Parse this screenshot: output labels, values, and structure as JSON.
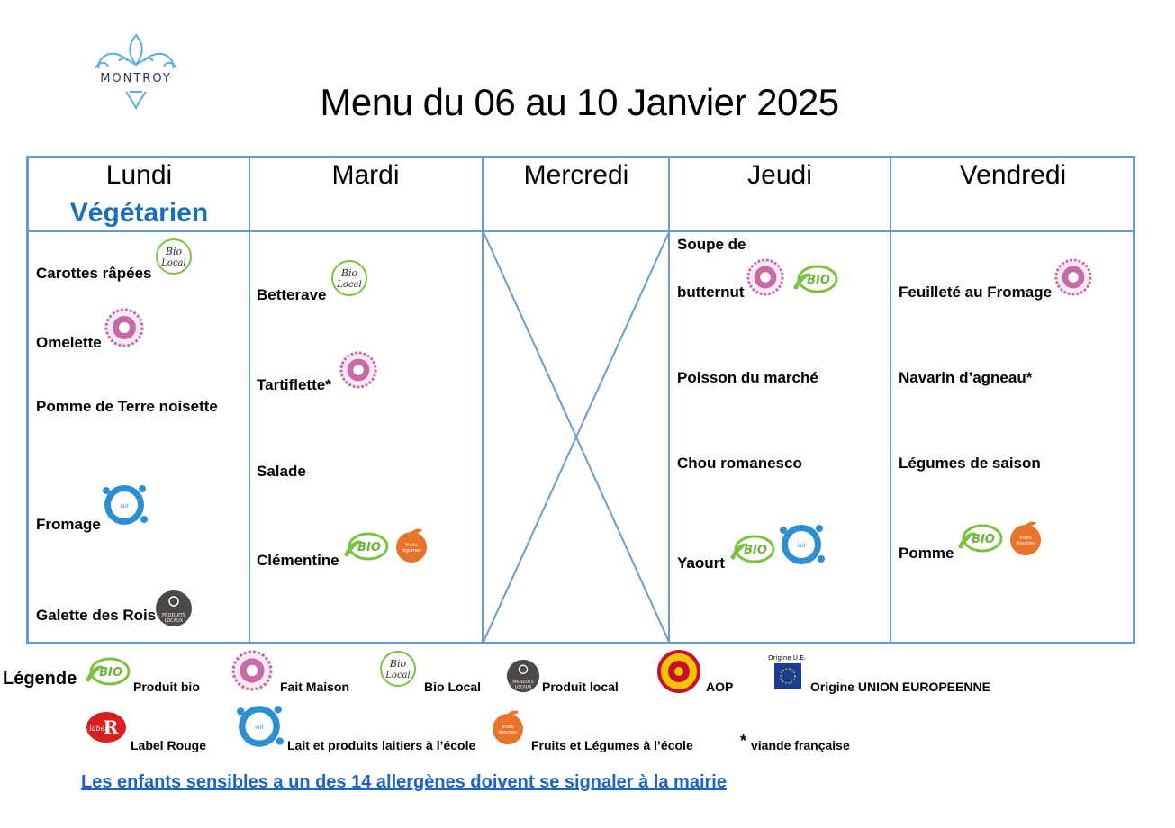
{
  "brand": {
    "name": "MONTROY"
  },
  "title": "Menu du 06 au 10 Janvier 2025",
  "days": [
    {
      "name": "Lundi",
      "theme": "Végétarien",
      "items": [
        {
          "label": "Carottes râpées",
          "badges": [
            "bio-local-icon"
          ]
        },
        {
          "label": "Omelette",
          "badges": [
            "fait-maison-icon"
          ]
        },
        {
          "label": "Pomme de Terre noisette",
          "badges": []
        },
        {
          "label": "Fromage",
          "badges": [
            "lait-ecole-icon"
          ]
        },
        {
          "label": "Galette des Rois",
          "badges": [
            "produit-local-icon"
          ]
        }
      ]
    },
    {
      "name": "Mardi",
      "items": [
        {
          "label": "Betterave",
          "badges": [
            "bio-local-icon"
          ]
        },
        {
          "label": "Tartiflette*",
          "badges": [
            "fait-maison-icon"
          ]
        },
        {
          "label": "Salade",
          "badges": []
        },
        {
          "label": "Clémentine",
          "badges": [
            "bio-icon",
            "fruits-legumes-ecole-icon"
          ]
        }
      ]
    },
    {
      "name": "Mercredi",
      "items": []
    },
    {
      "name": "Jeudi",
      "items": [
        {
          "label": "Soupe de",
          "badges": []
        },
        {
          "label": "butternut",
          "badges": [
            "fait-maison-icon",
            "bio-icon"
          ]
        },
        {
          "label": "Poisson du marché",
          "badges": []
        },
        {
          "label": "Chou romanesco",
          "badges": []
        },
        {
          "label": "Yaourt",
          "badges": [
            "bio-icon",
            "lait-ecole-icon"
          ]
        }
      ]
    },
    {
      "name": "Vendredi",
      "items": [
        {
          "label": "Feuilleté au Fromage",
          "badges": [
            "fait-maison-icon"
          ]
        },
        {
          "label": "Navarin d’agneau*",
          "badges": []
        },
        {
          "label": "Légumes de saison",
          "badges": []
        },
        {
          "label": "Pomme",
          "badges": [
            "bio-icon",
            "fruits-legumes-ecole-icon"
          ]
        }
      ]
    }
  ],
  "legend": {
    "title": "Légende",
    "items": [
      {
        "icon": "bio-icon",
        "label": "Produit bio"
      },
      {
        "icon": "fait-maison-icon",
        "label": "Fait Maison"
      },
      {
        "icon": "bio-local-icon",
        "label": "Bio Local"
      },
      {
        "icon": "produit-local-icon",
        "label": "Produit local"
      },
      {
        "icon": "aop-icon",
        "label": "AOP"
      },
      {
        "icon": "origine-ue-icon",
        "label": "Origine UNION EUROPEENNE"
      },
      {
        "icon": "label-rouge-icon",
        "label": "Label Rouge"
      },
      {
        "icon": "lait-ecole-icon",
        "label": "Lait et produits laitiers à l’école"
      },
      {
        "icon": "fruits-legumes-ecole-icon",
        "label": "Fruits et Légumes à l’école"
      },
      {
        "icon": "asterisk",
        "label": "viande française"
      }
    ]
  },
  "notice": "Les enfants sensibles a un des 14 allergènes doivent se signaler à la mairie",
  "badge_text": {
    "bio": "BIO",
    "bio_local_line1": "Bio",
    "bio_local_line2": "Local",
    "produits_locaux": "PRODUITS LOCAUX",
    "fruits_legumes": "fruits & légumes à l'école",
    "lait_ecole": "lait et produits laitiers à l'école",
    "label_rouge": "label Rouge",
    "origine_ue": "Origine U.E."
  },
  "colors": {
    "grid": "#6a9bd0",
    "theme": "#1b6fb7",
    "link": "#1b63c9",
    "logo": "#5aaee0",
    "fait_maison": "#c86aa8",
    "bio_green": "#7cc242",
    "fruits_orange": "#e8732a",
    "lait_blue": "#2b8fd1",
    "produit_local": "#4d4a45",
    "aop": "#c8102e",
    "label_rouge": "#d81e1e"
  }
}
